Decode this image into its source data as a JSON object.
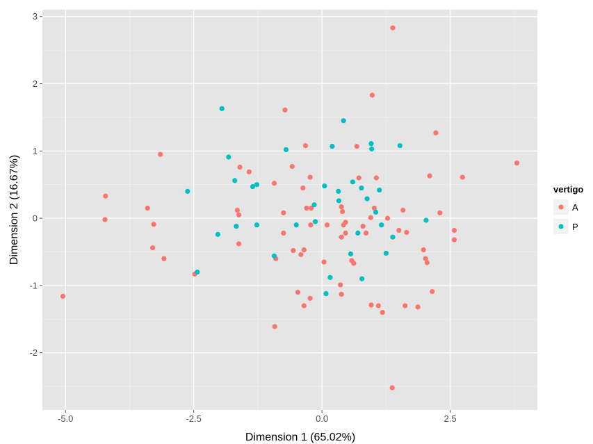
{
  "chart_data": {
    "type": "scatter",
    "xlabel": "Dimension 1 (65.02%)",
    "ylabel": "Dimension 2 (16.67%)",
    "xlim": [
      -5.45,
      4.2
    ],
    "ylim": [
      -2.85,
      3.1
    ],
    "x_ticks": [
      -5.0,
      -2.5,
      0.0,
      2.5
    ],
    "x_tick_labels": [
      "-5.0",
      "-2.5",
      "0.0",
      "2.5"
    ],
    "y_ticks": [
      -2,
      -1,
      0,
      1,
      2,
      3
    ],
    "y_tick_labels": [
      "-2",
      "-1",
      "0",
      "1",
      "2",
      "3"
    ],
    "grid": true,
    "panel_background": "#e5e5e5",
    "grid_major_color": "#ffffff",
    "grid_minor_color": "#f2f2f2",
    "legend": {
      "title": "vertigo",
      "position": "right"
    },
    "series": [
      {
        "name": "A",
        "color": "#f8766d",
        "points": [
          [
            -5.05,
            -1.16
          ],
          [
            -4.22,
            0.33
          ],
          [
            -4.23,
            -0.02
          ],
          [
            -3.4,
            0.15
          ],
          [
            -3.15,
            0.95
          ],
          [
            -3.28,
            -0.09
          ],
          [
            -3.3,
            -0.44
          ],
          [
            -3.08,
            -0.6
          ],
          [
            -2.48,
            -0.83
          ],
          [
            -1.6,
            0.76
          ],
          [
            -1.42,
            0.69
          ],
          [
            -1.65,
            0.12
          ],
          [
            -1.62,
            0.05
          ],
          [
            -1.62,
            -0.38
          ],
          [
            -0.93,
            0.52
          ],
          [
            -0.9,
            -0.6
          ],
          [
            -0.92,
            -1.61
          ],
          [
            -0.72,
            1.61
          ],
          [
            -0.58,
            0.77
          ],
          [
            -0.75,
            0.08
          ],
          [
            -0.75,
            -0.22
          ],
          [
            -0.32,
            1.08
          ],
          [
            -0.37,
            0.45
          ],
          [
            -0.23,
            0.61
          ],
          [
            -0.3,
            0.15
          ],
          [
            -0.21,
            0.15
          ],
          [
            -0.56,
            -0.48
          ],
          [
            -0.41,
            -0.54
          ],
          [
            -0.35,
            -0.47
          ],
          [
            -0.47,
            -1.1
          ],
          [
            -0.35,
            -1.3
          ],
          [
            -0.23,
            -1.19
          ],
          [
            -0.22,
            -0.1
          ],
          [
            0.04,
            -0.65
          ],
          [
            0.1,
            -0.1
          ],
          [
            0.36,
            -0.99
          ],
          [
            0.38,
            -1.13
          ],
          [
            0.38,
            0.17
          ],
          [
            0.4,
            0.1
          ],
          [
            0.42,
            -0.1
          ],
          [
            0.38,
            -0.28
          ],
          [
            0.46,
            -0.06
          ],
          [
            0.46,
            -0.22
          ],
          [
            0.58,
            -0.63
          ],
          [
            0.62,
            -0.67
          ],
          [
            0.68,
            1.07
          ],
          [
            0.72,
            0.6
          ],
          [
            0.8,
            -0.12
          ],
          [
            0.86,
            -0.22
          ],
          [
            0.95,
            0.01
          ],
          [
            0.98,
            1.83
          ],
          [
            1.06,
            0.6
          ],
          [
            1.02,
            0.15
          ],
          [
            0.96,
            -1.29
          ],
          [
            1.1,
            -1.3
          ],
          [
            1.18,
            -1.4
          ],
          [
            1.28,
            0.0
          ],
          [
            1.38,
            2.83
          ],
          [
            1.5,
            -0.18
          ],
          [
            1.58,
            0.12
          ],
          [
            1.65,
            -0.21
          ],
          [
            1.62,
            -1.3
          ],
          [
            1.87,
            -1.32
          ],
          [
            1.98,
            -0.47
          ],
          [
            2.02,
            -0.6
          ],
          [
            2.05,
            -0.66
          ],
          [
            2.1,
            0.63
          ],
          [
            2.15,
            -1.09
          ],
          [
            2.22,
            1.27
          ],
          [
            2.3,
            0.08
          ],
          [
            2.58,
            -0.18
          ],
          [
            2.58,
            -0.32
          ],
          [
            2.74,
            0.61
          ],
          [
            3.8,
            0.82
          ],
          [
            1.37,
            -2.52
          ]
        ]
      },
      {
        "name": "P",
        "color": "#00bfc4",
        "points": [
          [
            -1.95,
            1.63
          ],
          [
            -1.82,
            0.91
          ],
          [
            -1.7,
            0.56
          ],
          [
            -1.35,
            0.47
          ],
          [
            -1.27,
            0.5
          ],
          [
            -1.67,
            -0.12
          ],
          [
            -1.27,
            -0.1
          ],
          [
            -2.62,
            0.4
          ],
          [
            -2.03,
            -0.24
          ],
          [
            -2.43,
            -0.8
          ],
          [
            -0.7,
            1.02
          ],
          [
            -0.93,
            -0.56
          ],
          [
            -0.5,
            -0.1
          ],
          [
            -0.15,
            0.2
          ],
          [
            -0.13,
            -0.05
          ],
          [
            0.05,
            0.48
          ],
          [
            0.2,
            1.07
          ],
          [
            0.32,
            0.4
          ],
          [
            0.33,
            0.26
          ],
          [
            0.42,
            1.45
          ],
          [
            0.6,
            0.54
          ],
          [
            0.56,
            -0.53
          ],
          [
            0.7,
            -0.22
          ],
          [
            0.77,
            0.45
          ],
          [
            0.88,
            0.29
          ],
          [
            0.96,
            1.11
          ],
          [
            0.97,
            1.03
          ],
          [
            1.05,
            0.09
          ],
          [
            1.12,
            0.42
          ],
          [
            1.16,
            -0.1
          ],
          [
            1.25,
            -0.52
          ],
          [
            1.38,
            -0.28
          ],
          [
            1.52,
            1.08
          ],
          [
            2.03,
            -0.03
          ],
          [
            0.78,
            -0.9
          ],
          [
            0.16,
            -0.88
          ],
          [
            0.08,
            -1.12
          ]
        ]
      }
    ]
  }
}
